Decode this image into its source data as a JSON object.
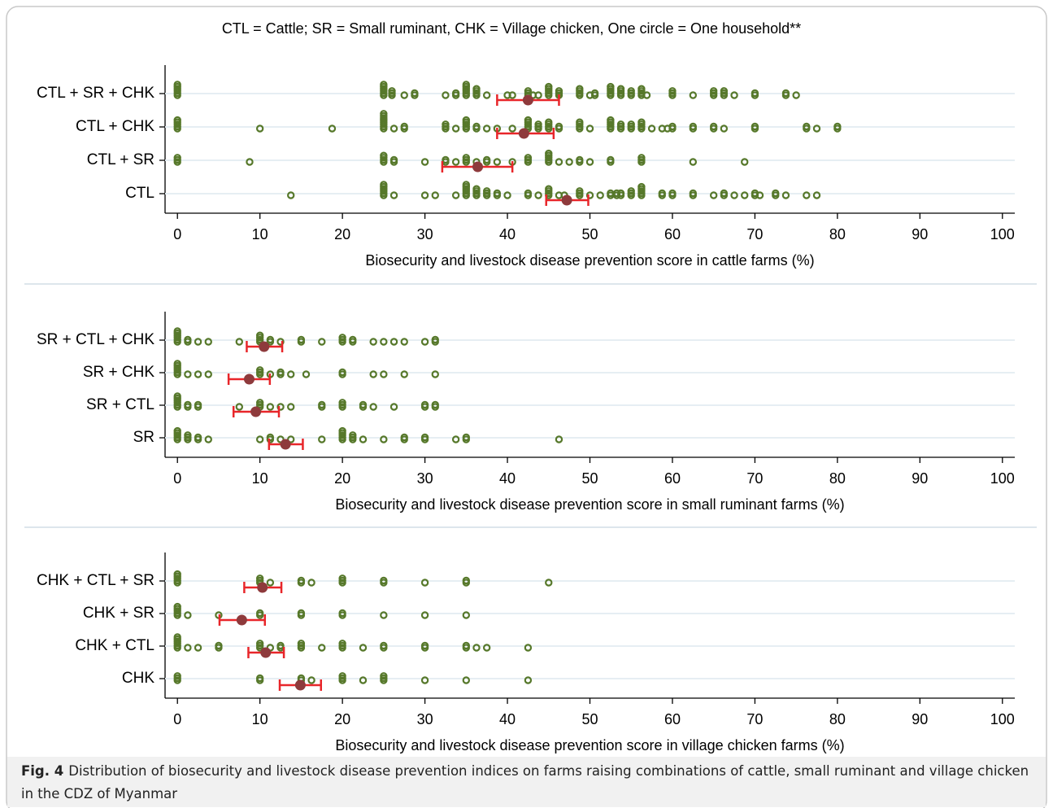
{
  "chart_data": [
    {
      "type": "strip",
      "title": "CTL = Cattle; SR = Small ruminant, CHK = Village chicken, One circle = One household**",
      "xlabel": "Biosecurity and livestock disease prevention score in cattle farms (%)",
      "categories": [
        "CTL + SR + CHK",
        "CTL + CHK",
        "CTL + SR",
        "CTL"
      ],
      "points": [
        [
          0,
          0,
          0,
          0,
          0,
          0,
          25,
          25,
          25,
          25,
          25,
          25,
          26,
          26,
          26,
          27.5,
          28.75,
          28.75,
          32.5,
          33.75,
          33.75,
          35,
          35,
          35,
          35,
          35,
          35,
          36.25,
          36.25,
          36.25,
          36.25,
          37.5,
          40,
          40.6,
          42.5,
          42.5,
          42.5,
          43.1,
          43.75,
          45,
          45,
          45,
          45,
          45,
          46.25,
          46.25,
          46.25,
          48.75,
          48.75,
          48.75,
          48.75,
          50,
          50.6,
          50.6,
          52.5,
          52.5,
          52.5,
          52.5,
          52.5,
          53.75,
          53.75,
          53.75,
          53.75,
          55,
          55,
          55,
          56.25,
          56.25,
          56.25,
          56.25,
          56.9,
          60,
          60,
          60,
          62.5,
          65,
          65,
          65,
          66.25,
          66.25,
          66.25,
          67.5,
          70,
          70,
          73.75,
          73.75,
          75
        ],
        [
          0,
          0,
          0,
          0,
          0,
          10,
          18.75,
          25,
          25,
          25,
          25,
          25,
          25,
          25,
          25,
          26.25,
          27.5,
          27.5,
          32.5,
          32.5,
          32.5,
          33.75,
          35,
          35,
          35,
          35,
          35,
          36.25,
          36.25,
          37.5,
          38.75,
          40.6,
          42.5,
          42.5,
          42.5,
          42.5,
          42.5,
          43.75,
          43.75,
          43.75,
          45,
          45,
          45,
          45,
          46.25,
          46.25,
          48.75,
          48.75,
          48.75,
          48.75,
          50,
          52.5,
          52.5,
          52.5,
          52.5,
          52.5,
          53.75,
          53.75,
          53.75,
          55,
          55,
          55,
          56.25,
          56.25,
          56.25,
          56.25,
          57.5,
          58.75,
          59.4,
          60,
          60,
          62.5,
          62.5,
          65,
          65,
          66.25,
          70,
          70,
          76.25,
          76.25,
          77.5,
          80,
          80
        ],
        [
          0,
          0,
          0,
          8.75,
          25,
          25,
          25,
          25,
          26.25,
          26.25,
          30,
          32.5,
          32.5,
          33.75,
          35,
          35,
          35,
          36.25,
          37.5,
          37.5,
          38.75,
          40.6,
          42.5,
          42.5,
          42.5,
          45,
          45,
          45,
          45,
          45,
          46.25,
          47.5,
          48.75,
          48.75,
          50,
          52.5,
          52.5,
          56.25,
          56.25,
          56.25,
          62.5,
          68.75
        ],
        [
          13.75,
          25,
          25,
          25,
          25,
          25,
          25,
          26.25,
          30,
          31.25,
          33.75,
          35,
          35,
          35,
          35,
          35,
          35,
          36.25,
          36.25,
          36.25,
          36.25,
          37.5,
          37.5,
          37.5,
          38.75,
          38.75,
          40,
          42.5,
          42.5,
          43.75,
          45,
          45,
          45,
          45,
          46.25,
          46.9,
          48.75,
          48.75,
          48.75,
          50,
          51.25,
          52.5,
          52.5,
          53.25,
          53.25,
          53.75,
          53.75,
          55,
          55,
          55,
          56.25,
          56.25,
          56.25,
          56.25,
          56.25,
          58.75,
          58.75,
          60,
          60,
          62.5,
          62.5,
          65,
          66.25,
          66.25,
          67.5,
          68.75,
          70,
          70,
          70.6,
          72.5,
          72.5,
          73.75,
          76.25,
          77.5
        ]
      ],
      "mean": [
        42.5,
        42,
        36.4,
        47.2
      ],
      "ci": [
        [
          38.75,
          46.25
        ],
        [
          38.75,
          45.6
        ],
        [
          32.1,
          40.6
        ],
        [
          44.7,
          49.8
        ]
      ],
      "xlim": [
        -1.5,
        101.5
      ],
      "xticks": [
        0,
        10,
        20,
        30,
        40,
        50,
        60,
        70,
        80,
        90,
        100
      ],
      "point_color": "#56782a",
      "mean_color": "#8e3a3c",
      "ci_color": "#e8262a"
    },
    {
      "type": "strip",
      "xlabel": "Biosecurity and livestock disease prevention score in small ruminant farms (%)",
      "categories": [
        "SR + CTL + CHK",
        "SR + CHK",
        "SR + CTL",
        "SR"
      ],
      "points": [
        [
          0,
          0,
          0,
          0,
          0,
          0,
          1.25,
          1.25,
          2.5,
          3.75,
          7.5,
          10,
          10,
          10,
          10,
          11.25,
          11.25,
          12.5,
          15,
          15,
          17.5,
          20,
          20,
          20,
          21.25,
          21.25,
          23.75,
          25,
          26.25,
          27.5,
          30,
          31.25,
          31.25
        ],
        [
          0,
          0,
          0,
          0,
          0,
          0,
          1.25,
          2.5,
          3.75,
          10,
          10,
          10,
          11.25,
          12.5,
          12.5,
          13.75,
          15.6,
          20,
          20,
          23.75,
          25,
          27.5,
          31.25
        ],
        [
          0,
          0,
          0,
          0,
          0,
          0,
          1.25,
          1.25,
          2.5,
          2.5,
          7.5,
          10,
          10,
          10,
          11.25,
          12.5,
          13.75,
          17.5,
          17.5,
          20,
          20,
          20,
          22.5,
          22.5,
          23.75,
          26.25,
          30,
          30,
          31.25,
          31.25
        ],
        [
          0,
          0,
          0,
          0,
          0,
          1.25,
          1.25,
          1.25,
          2.5,
          2.5,
          3.75,
          10,
          11.25,
          11.25,
          12.5,
          13.75,
          17.5,
          20,
          20,
          20,
          20,
          20,
          21.25,
          21.25,
          21.25,
          22.5,
          25,
          27.5,
          27.5,
          30,
          30,
          33.75,
          35,
          35,
          46.25
        ]
      ],
      "mean": [
        10.5,
        8.7,
        9.5,
        13.1
      ],
      "ci": [
        [
          8.4,
          12.7
        ],
        [
          6.2,
          11.2
        ],
        [
          6.8,
          12.3
        ],
        [
          11.1,
          15.2
        ]
      ],
      "xlim": [
        -1.5,
        101.5
      ],
      "xticks": [
        0,
        10,
        20,
        30,
        40,
        50,
        60,
        70,
        80,
        90,
        100
      ],
      "point_color": "#56782a",
      "mean_color": "#8e3a3c",
      "ci_color": "#e8262a"
    },
    {
      "type": "strip",
      "xlabel": "Biosecurity and livestock disease prevention score in village chicken farms (%)",
      "categories": [
        "CHK + CTL + SR",
        "CHK + SR",
        "CHK + CTL",
        "CHK"
      ],
      "points": [
        [
          0,
          0,
          0,
          0,
          0,
          10,
          10,
          10,
          11.25,
          15,
          15,
          16.25,
          20,
          20,
          20,
          25,
          25,
          30,
          35,
          35,
          45
        ],
        [
          0,
          0,
          0,
          0,
          0,
          1.25,
          5,
          10,
          10,
          15,
          15,
          20,
          20,
          25,
          30,
          35
        ],
        [
          0,
          0,
          0,
          0,
          0,
          0,
          1.25,
          2.5,
          5,
          5,
          10,
          10,
          10,
          11.25,
          12.5,
          12.5,
          15,
          15,
          15,
          17.5,
          20,
          20,
          20,
          22.5,
          25,
          25,
          30,
          30,
          35,
          35,
          36.25,
          37.5,
          42.5
        ],
        [
          0,
          0,
          0,
          10,
          10,
          15,
          15,
          16.25,
          20,
          20,
          20,
          22.5,
          25,
          25,
          25,
          30,
          35,
          42.5
        ]
      ],
      "mean": [
        10.3,
        7.8,
        10.7,
        14.9
      ],
      "ci": [
        [
          8.1,
          12.6
        ],
        [
          5.1,
          10.6
        ],
        [
          8.6,
          12.9
        ],
        [
          12.4,
          17.4
        ]
      ],
      "xlim": [
        -1.5,
        101.5
      ],
      "xticks": [
        0,
        10,
        20,
        30,
        40,
        50,
        60,
        70,
        80,
        90,
        100
      ],
      "point_color": "#56782a",
      "mean_color": "#8e3a3c",
      "ci_color": "#e8262a"
    }
  ],
  "caption": {
    "label": "Fig. 4",
    "text": "Distribution of biosecurity and livestock disease prevention indices on farms raising combinations of cattle, small ruminant and village chicken in the CDZ of Myanmar"
  }
}
